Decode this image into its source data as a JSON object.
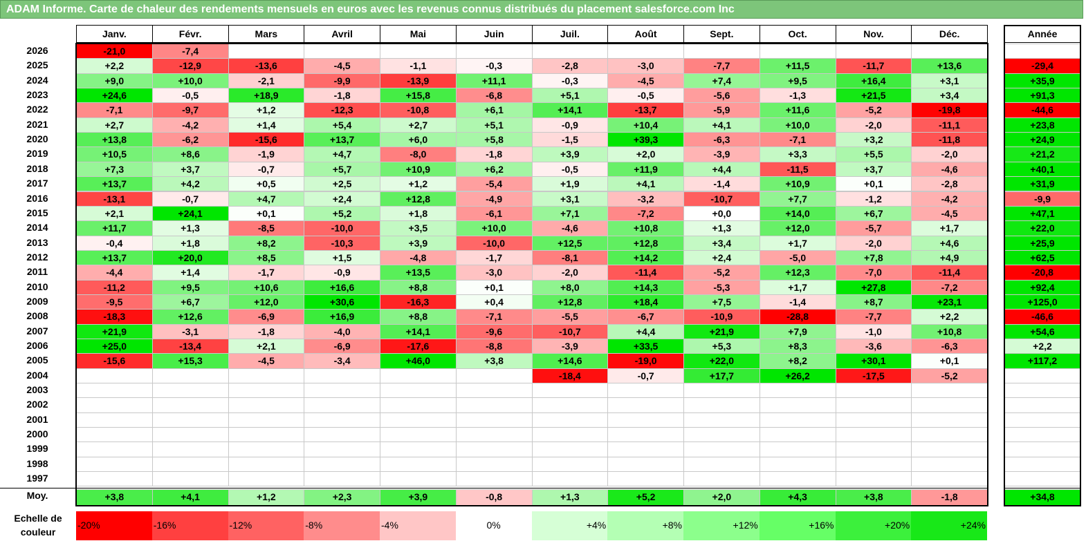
{
  "title": "ADAM Informe. Carte de chaleur des rendements mensuels en euros avec les revenus connus distribués du placement salesforce.com Inc",
  "chart_data": {
    "type": "heatmap",
    "title": "ADAM Informe. Carte de chaleur des rendements mensuels en euros avec les revenus connus distribués du placement salesforce.com Inc",
    "columns": [
      "Janv.",
      "Févr.",
      "Mars",
      "Avril",
      "Mai",
      "Juin",
      "Juil.",
      "Août",
      "Sept.",
      "Oct.",
      "Nov.",
      "Déc."
    ],
    "annual_label": "Année",
    "rows": [
      {
        "year": "2026",
        "values": [
          "-21,0",
          "-7,4",
          "",
          "",
          "",
          "",
          "",
          "",
          "",
          "",
          "",
          ""
        ],
        "annual": ""
      },
      {
        "year": "2025",
        "values": [
          "+2,2",
          "-12,9",
          "-13,6",
          "-4,5",
          "-1,1",
          "-0,3",
          "-2,8",
          "-3,0",
          "-7,7",
          "+11,5",
          "-11,7",
          "+13,6"
        ],
        "annual": "-29,4"
      },
      {
        "year": "2024",
        "values": [
          "+9,0",
          "+10,0",
          "-2,1",
          "-9,9",
          "-13,9",
          "+11,1",
          "-0,3",
          "-4,5",
          "+7,4",
          "+9,5",
          "+16,4",
          "+3,1"
        ],
        "annual": "+35,9"
      },
      {
        "year": "2023",
        "values": [
          "+24,6",
          "-0,5",
          "+18,9",
          "-1,8",
          "+15,8",
          "-6,8",
          "+5,1",
          "-0,5",
          "-5,6",
          "-1,3",
          "+21,5",
          "+3,4"
        ],
        "annual": "+91,3"
      },
      {
        "year": "2022",
        "values": [
          "-7,1",
          "-9,7",
          "+1,2",
          "-12,3",
          "-10,8",
          "+6,1",
          "+14,1",
          "-13,7",
          "-5,9",
          "+11,6",
          "-5,2",
          "-19,8"
        ],
        "annual": "-44,6"
      },
      {
        "year": "2021",
        "values": [
          "+2,7",
          "-4,2",
          "+1,4",
          "+5,4",
          "+2,7",
          "+5,1",
          "-0,9",
          "+10,4",
          "+4,1",
          "+10,0",
          "-2,0",
          "-11,1"
        ],
        "annual": "+23,8"
      },
      {
        "year": "2020",
        "values": [
          "+13,8",
          "-6,2",
          "-15,6",
          "+13,7",
          "+6,0",
          "+5,8",
          "-1,5",
          "+39,3",
          "-6,3",
          "-7,1",
          "+3,2",
          "-11,8"
        ],
        "annual": "+24,9"
      },
      {
        "year": "2019",
        "values": [
          "+10,5",
          "+8,6",
          "-1,9",
          "+4,7",
          "-8,0",
          "-1,8",
          "+3,9",
          "+2,0",
          "-3,9",
          "+3,3",
          "+5,5",
          "-2,0"
        ],
        "annual": "+21,2"
      },
      {
        "year": "2018",
        "values": [
          "+7,3",
          "+3,7",
          "-0,7",
          "+5,7",
          "+10,9",
          "+6,2",
          "-0,5",
          "+11,9",
          "+4,4",
          "-11,5",
          "+3,7",
          "-4,6"
        ],
        "annual": "+40,1"
      },
      {
        "year": "2017",
        "values": [
          "+13,7",
          "+4,2",
          "+0,5",
          "+2,5",
          "+1,2",
          "-5,4",
          "+1,9",
          "+4,1",
          "-1,4",
          "+10,9",
          "+0,1",
          "-2,8"
        ],
        "annual": "+31,9"
      },
      {
        "year": "2016",
        "values": [
          "-13,1",
          "-0,7",
          "+4,7",
          "+2,4",
          "+12,8",
          "-4,9",
          "+3,1",
          "-3,2",
          "-10,7",
          "+7,7",
          "-1,2",
          "-4,2"
        ],
        "annual": "-9,9"
      },
      {
        "year": "2015",
        "values": [
          "+2,1",
          "+24,1",
          "+0,1",
          "+5,2",
          "+1,8",
          "-6,1",
          "+7,1",
          "-7,2",
          "+0,0",
          "+14,0",
          "+6,7",
          "-4,5"
        ],
        "annual": "+47,1"
      },
      {
        "year": "2014",
        "values": [
          "+11,7",
          "+1,3",
          "-8,5",
          "-10,0",
          "+3,5",
          "+10,0",
          "-4,6",
          "+10,8",
          "+1,3",
          "+12,0",
          "-5,7",
          "+1,7"
        ],
        "annual": "+22,0"
      },
      {
        "year": "2013",
        "values": [
          "-0,4",
          "+1,8",
          "+8,2",
          "-10,3",
          "+3,9",
          "-10,0",
          "+12,5",
          "+12,8",
          "+3,4",
          "+1,7",
          "-2,0",
          "+4,6"
        ],
        "annual": "+25,9"
      },
      {
        "year": "2012",
        "values": [
          "+13,7",
          "+20,0",
          "+8,5",
          "+1,5",
          "-4,8",
          "-1,7",
          "-8,1",
          "+14,2",
          "+2,4",
          "-5,0",
          "+7,8",
          "+4,9"
        ],
        "annual": "+62,5"
      },
      {
        "year": "2011",
        "values": [
          "-4,4",
          "+1,4",
          "-1,7",
          "-0,9",
          "+13,5",
          "-3,0",
          "-2,0",
          "-11,4",
          "-5,2",
          "+12,3",
          "-7,0",
          "-11,4"
        ],
        "annual": "-20,8"
      },
      {
        "year": "2010",
        "values": [
          "-11,2",
          "+9,5",
          "+10,6",
          "+16,6",
          "+8,8",
          "+0,1",
          "+8,0",
          "+14,3",
          "-5,3",
          "+1,7",
          "+27,8",
          "-7,2"
        ],
        "annual": "+92,4"
      },
      {
        "year": "2009",
        "values": [
          "-9,5",
          "+6,7",
          "+12,0",
          "+30,6",
          "-16,3",
          "+0,4",
          "+12,8",
          "+18,4",
          "+7,5",
          "-1,4",
          "+8,7",
          "+23,1"
        ],
        "annual": "+125,0"
      },
      {
        "year": "2008",
        "values": [
          "-18,3",
          "+12,6",
          "-6,9",
          "+16,9",
          "+8,8",
          "-7,1",
          "-5,5",
          "-6,7",
          "-10,9",
          "-28,8",
          "-7,7",
          "+2,2"
        ],
        "annual": "-46,6"
      },
      {
        "year": "2007",
        "values": [
          "+21,9",
          "-3,1",
          "-1,8",
          "-4,0",
          "+14,1",
          "-9,6",
          "-10,7",
          "+4,4",
          "+21,9",
          "+7,9",
          "-1,0",
          "+10,8"
        ],
        "annual": "+54,6"
      },
      {
        "year": "2006",
        "values": [
          "+25,0",
          "-13,4",
          "+2,1",
          "-6,9",
          "-17,6",
          "-8,8",
          "-3,9",
          "+33,5",
          "+5,3",
          "+8,3",
          "-3,6",
          "-6,3"
        ],
        "annual": "+2,2"
      },
      {
        "year": "2005",
        "values": [
          "-15,6",
          "+15,3",
          "-4,5",
          "-3,4",
          "+46,0",
          "+3,8",
          "+14,6",
          "-19,0",
          "+22,0",
          "+8,2",
          "+30,1",
          "+0,1"
        ],
        "annual": "+117,2"
      },
      {
        "year": "2004",
        "values": [
          "",
          "",
          "",
          "",
          "",
          "",
          "-18,4",
          "-0,7",
          "+17,7",
          "+26,2",
          "-17,5",
          "-5,2"
        ],
        "annual": ""
      },
      {
        "year": "2003",
        "values": [
          "",
          "",
          "",
          "",
          "",
          "",
          "",
          "",
          "",
          "",
          "",
          ""
        ],
        "annual": ""
      },
      {
        "year": "2002",
        "values": [
          "",
          "",
          "",
          "",
          "",
          "",
          "",
          "",
          "",
          "",
          "",
          ""
        ],
        "annual": ""
      },
      {
        "year": "2001",
        "values": [
          "",
          "",
          "",
          "",
          "",
          "",
          "",
          "",
          "",
          "",
          "",
          ""
        ],
        "annual": ""
      },
      {
        "year": "2000",
        "values": [
          "",
          "",
          "",
          "",
          "",
          "",
          "",
          "",
          "",
          "",
          "",
          ""
        ],
        "annual": ""
      },
      {
        "year": "1999",
        "values": [
          "",
          "",
          "",
          "",
          "",
          "",
          "",
          "",
          "",
          "",
          "",
          ""
        ],
        "annual": ""
      },
      {
        "year": "1998",
        "values": [
          "",
          "",
          "",
          "",
          "",
          "",
          "",
          "",
          "",
          "",
          "",
          ""
        ],
        "annual": ""
      },
      {
        "year": "1997",
        "values": [
          "",
          "",
          "",
          "",
          "",
          "",
          "",
          "",
          "",
          "",
          "",
          ""
        ],
        "annual": ""
      }
    ],
    "average": {
      "label": "Moy.",
      "values": [
        "+3,8",
        "+4,1",
        "+1,2",
        "+2,3",
        "+3,9",
        "-0,8",
        "+1,3",
        "+5,2",
        "+2,0",
        "+4,3",
        "+3,8",
        "-1,8"
      ],
      "annual": "+34,8"
    },
    "color_scale": {
      "title": "Echelle de couleur",
      "labels": [
        "-20%",
        "-16%",
        "-12%",
        "-8%",
        "-4%",
        "0%",
        "+4%",
        "+8%",
        "+12%",
        "+16%",
        "+20%",
        "+24%"
      ],
      "colors": [
        "#ff0000",
        "#ff4040",
        "#ff6262",
        "#ff8c8c",
        "#ffc6c6",
        "#ffffff",
        "#d6ffd6",
        "#b4ffb4",
        "#8cff8c",
        "#66ff66",
        "#3cf03c",
        "#18e818"
      ]
    }
  }
}
